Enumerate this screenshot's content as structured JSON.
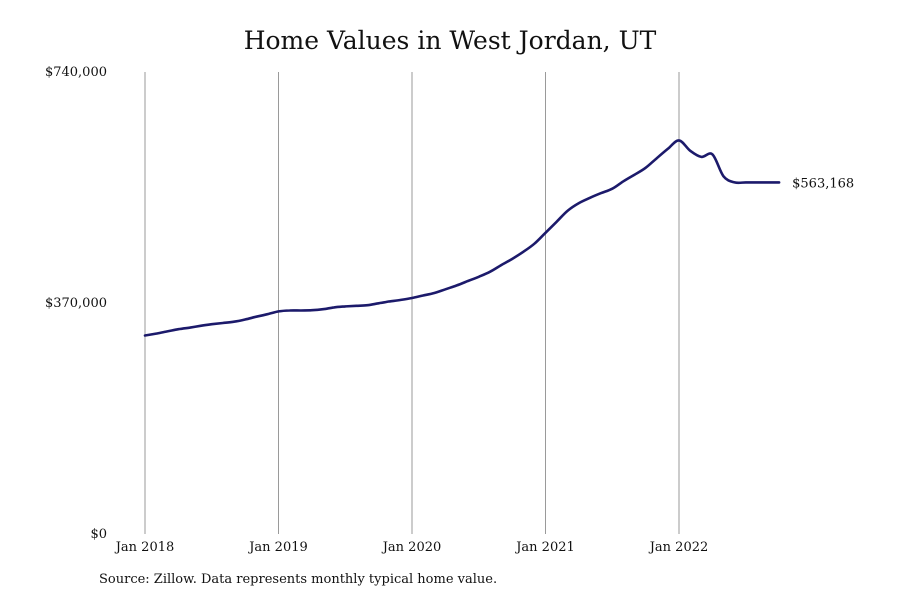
{
  "chart_data": {
    "type": "line",
    "title": "Home Values in West Jordan, UT",
    "xlabel": "",
    "ylabel": "",
    "source": "Source: Zillow. Data represents monthly typical home value.",
    "ylim": [
      0,
      740000
    ],
    "xlim": [
      "2018-01",
      "2022-10"
    ],
    "y_ticks": [
      {
        "value": 0,
        "label": "$0"
      },
      {
        "value": 370000,
        "label": "$370,000"
      },
      {
        "value": 740000,
        "label": "$740,000"
      }
    ],
    "x_ticks": [
      {
        "value": "2018-01",
        "label": "Jan 2018"
      },
      {
        "value": "2019-01",
        "label": "Jan 2019"
      },
      {
        "value": "2020-01",
        "label": "Jan 2020"
      },
      {
        "value": "2021-01",
        "label": "Jan 2021"
      },
      {
        "value": "2022-01",
        "label": "Jan 2022"
      }
    ],
    "grid": {
      "vertical": true,
      "horizontal": false
    },
    "line_color": "#1c1a6b",
    "end_label": "$563,168",
    "series": [
      {
        "x": [
          "2018-01",
          "2018-02",
          "2018-03",
          "2018-04",
          "2018-05",
          "2018-06",
          "2018-07",
          "2018-08",
          "2018-09",
          "2018-10",
          "2018-11",
          "2018-12",
          "2019-01",
          "2019-02",
          "2019-03",
          "2019-04",
          "2019-05",
          "2019-06",
          "2019-07",
          "2019-08",
          "2019-09",
          "2019-10",
          "2019-11",
          "2019-12",
          "2020-01",
          "2020-02",
          "2020-03",
          "2020-04",
          "2020-05",
          "2020-06",
          "2020-07",
          "2020-08",
          "2020-09",
          "2020-10",
          "2020-11",
          "2020-12",
          "2021-01",
          "2021-02",
          "2021-03",
          "2021-04",
          "2021-05",
          "2021-06",
          "2021-07",
          "2021-08",
          "2021-09",
          "2021-10",
          "2021-11",
          "2021-12",
          "2022-01",
          "2022-02",
          "2022-03",
          "2022-04",
          "2022-05",
          "2022-06",
          "2022-07",
          "2022-08",
          "2022-09",
          "2022-10"
        ],
        "values": [
          318000,
          321000,
          324500,
          328000,
          330500,
          333500,
          336000,
          338000,
          340000,
          343500,
          348000,
          352000,
          356500,
          358000,
          358000,
          358500,
          360000,
          363000,
          364500,
          365500,
          366500,
          369500,
          372500,
          375000,
          378000,
          382000,
          386000,
          392000,
          398000,
          405000,
          412000,
          420000,
          430500,
          440500,
          452000,
          465000,
          482500,
          500000,
          518000,
          530000,
          538500,
          546000,
          553000,
          565000,
          575500,
          586500,
          602000,
          617000,
          630500,
          614000,
          604000,
          608000,
          573000,
          563168,
          563168,
          563168,
          563168,
          563168
        ]
      }
    ]
  }
}
